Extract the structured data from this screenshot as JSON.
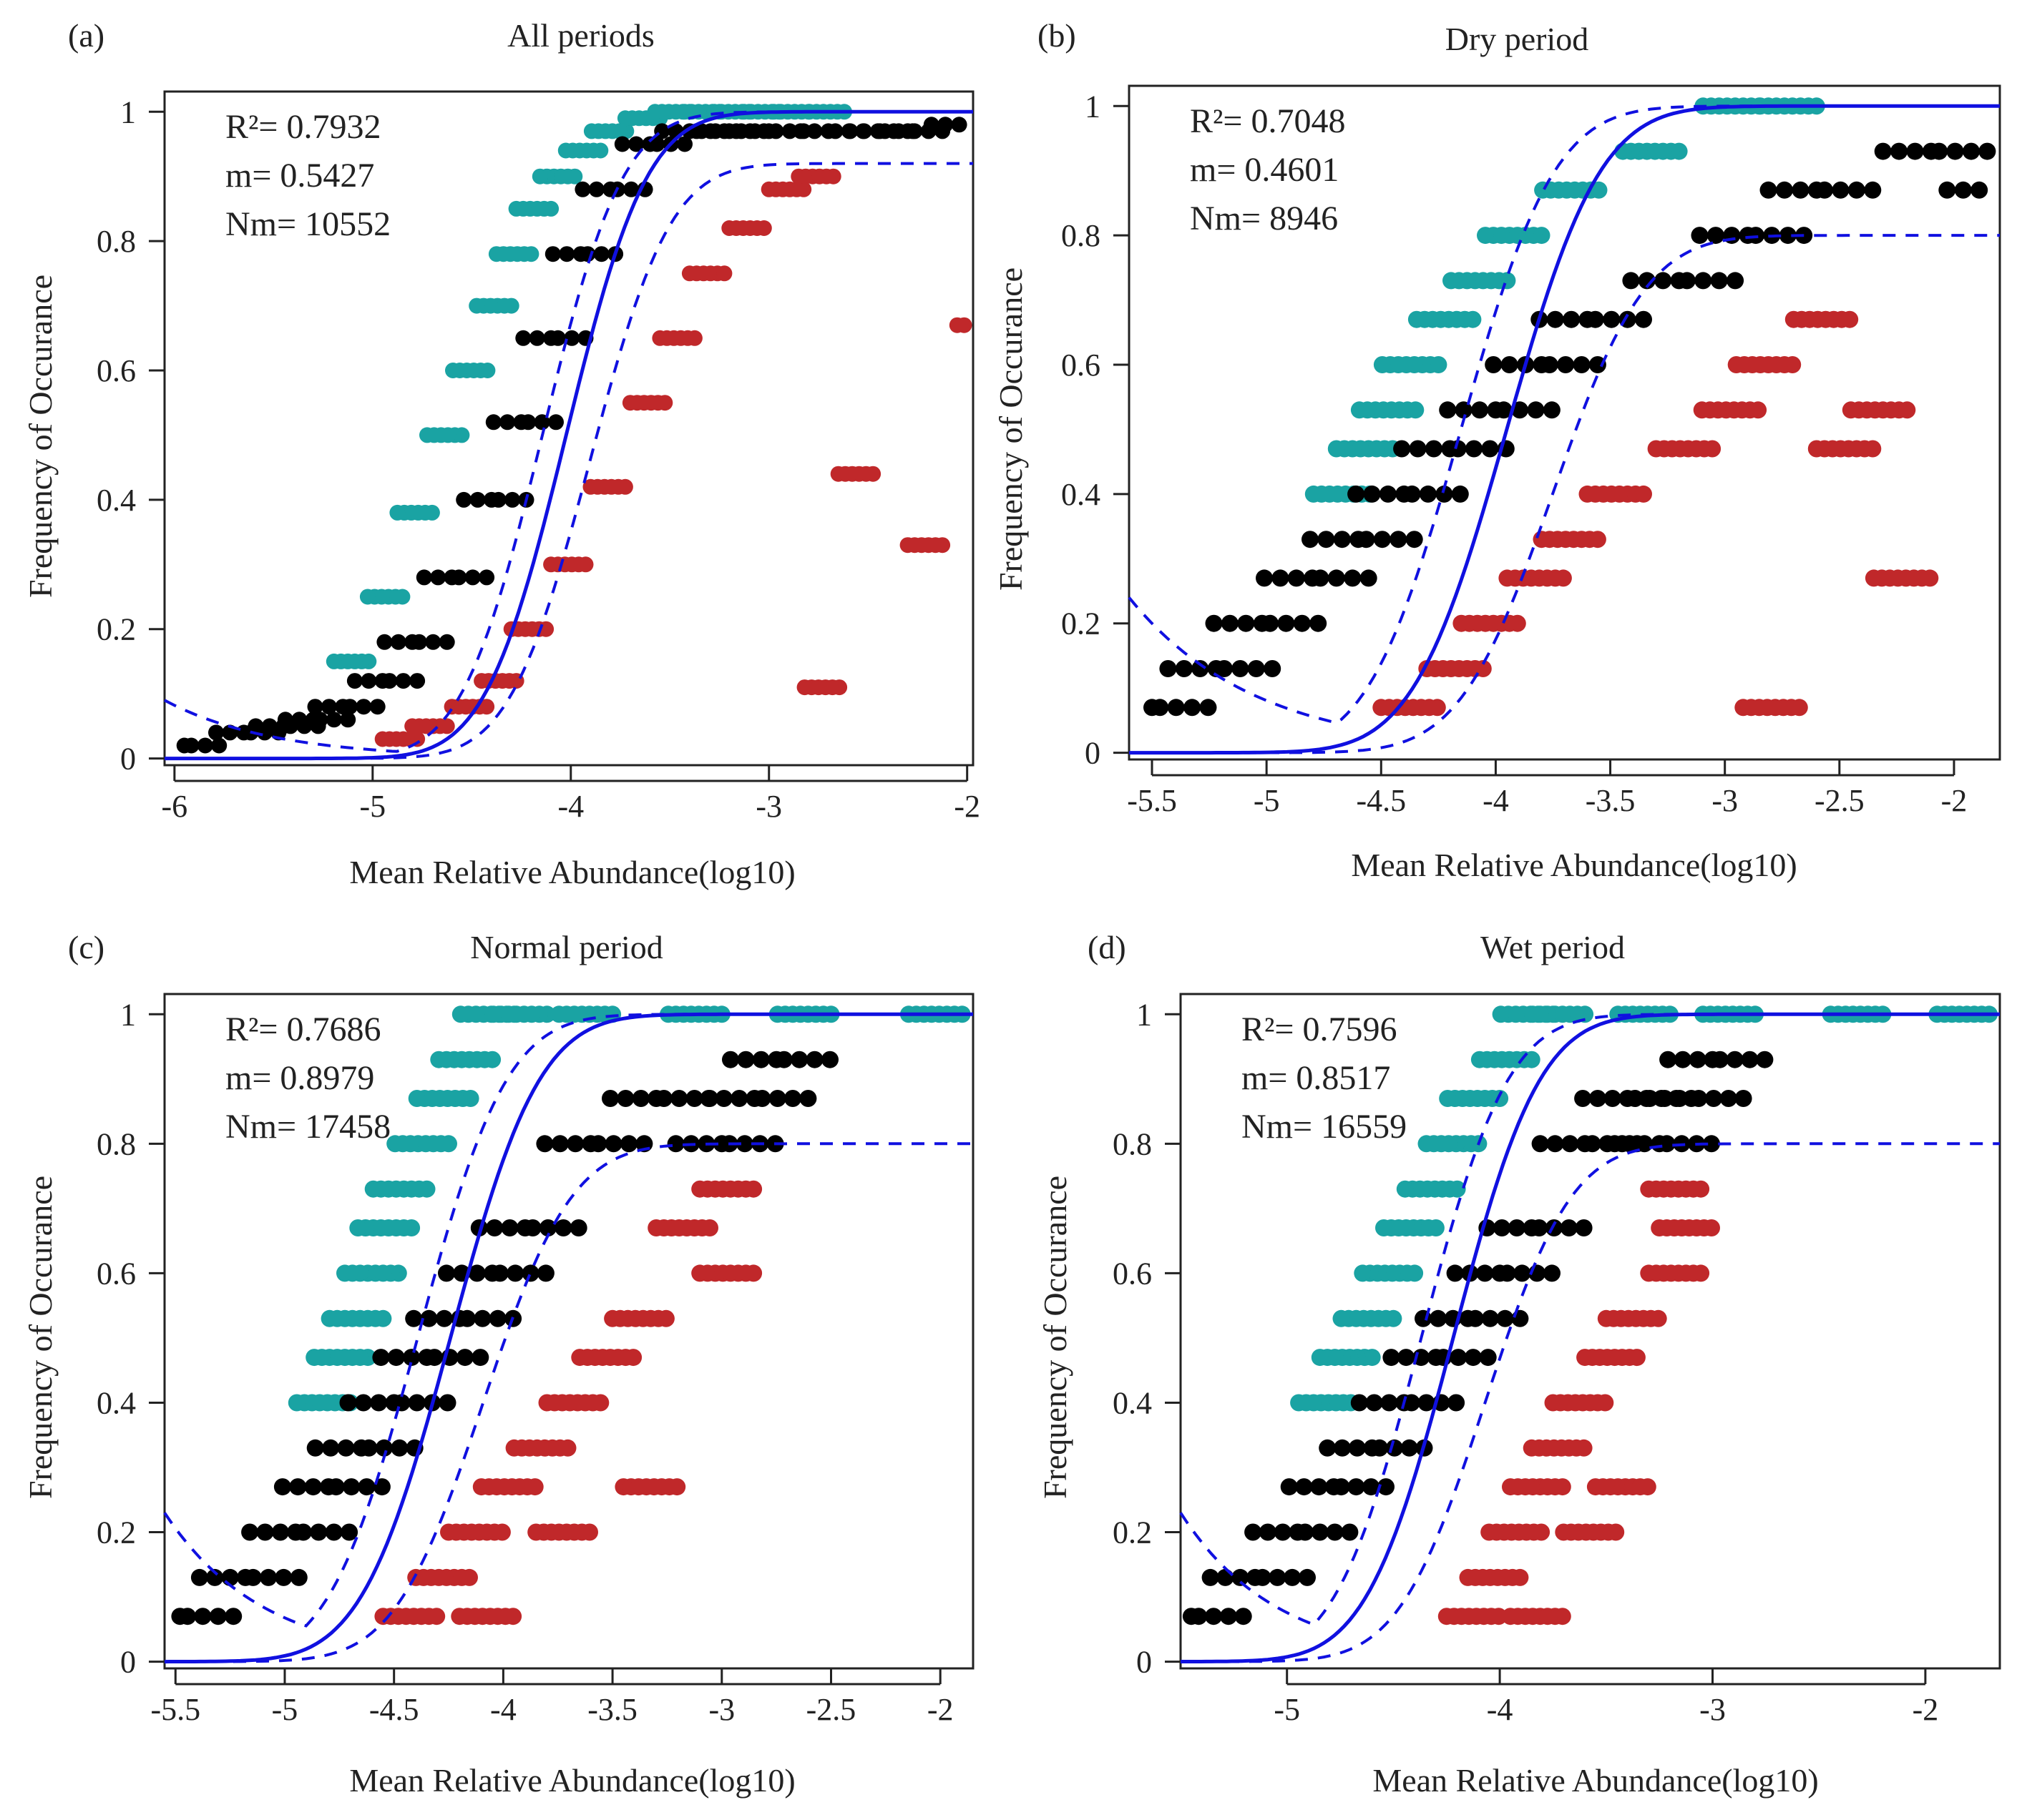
{
  "colors": {
    "above": "#1aa3a3",
    "neutral": "#000000",
    "below": "#c0282a",
    "fit": "#1010e0"
  },
  "chart_data": [
    {
      "type": "scatter",
      "panel": "(a)",
      "title": "All periods",
      "xlabel": "Mean Relative Abundance(log10)",
      "ylabel": "Frequency of Occurance",
      "xlim": [
        -6.05,
        -1.97
      ],
      "ylim": [
        0,
        1
      ],
      "xticks": [
        "-6",
        "-5",
        "-4",
        "-3",
        "-2"
      ],
      "xtick_values": [
        -6,
        -5,
        -4,
        -3,
        -2
      ],
      "yticks": [
        "0",
        "0.2",
        "0.4",
        "0.6",
        "0.8",
        "1"
      ],
      "ytick_values": [
        0,
        0.2,
        0.4,
        0.6,
        0.8,
        1
      ],
      "stats": [
        "R²= 0.7932",
        "m= 0.5427",
        "Nm= 10552"
      ],
      "fit": {
        "m": 0.5427,
        "Nm": 10552,
        "upper_plateau": 1.0,
        "upper_ci_plateau": 1.0,
        "lower_ci_plateau": 0.92,
        "upper_ci_left": 0.09,
        "upper_ci_decay": 0.55,
        "ci_shift": 0.12
      },
      "n_levels": 60,
      "series": [
        {
          "name": "",
          "class": "above",
          "x": [
            -5.02,
            -4.85,
            -4.7,
            -4.55,
            -4.42,
            -4.3,
            -4.2,
            -4.1,
            -3.98,
            -3.85,
            -3.72,
            -3.55,
            -3.4,
            -3.25,
            -3.1,
            -2.95,
            -2.8,
            -2.62
          ],
          "y": [
            0.15,
            0.25,
            0.38,
            0.5,
            0.6,
            0.7,
            0.78,
            0.85,
            0.9,
            0.94,
            0.97,
            0.99,
            1.0,
            1.0,
            1.0,
            1.0,
            1.0,
            1.0
          ]
        },
        {
          "name": "",
          "class": "neutral",
          "x": [
            -5.95,
            -5.65,
            -5.45,
            -5.3,
            -5.15,
            -4.95,
            -4.8,
            -4.6,
            -4.4,
            -4.25,
            -4.1,
            -3.95,
            -3.8,
            -3.6,
            -3.4,
            -3.2,
            -3.0,
            -2.7,
            -2.45,
            -2.3,
            -2.04
          ],
          "y": [
            0.02,
            0.04,
            0.05,
            0.06,
            0.08,
            0.12,
            0.18,
            0.28,
            0.4,
            0.52,
            0.65,
            0.78,
            0.88,
            0.95,
            0.97,
            0.97,
            0.97,
            0.97,
            0.97,
            0.97,
            0.98
          ]
        },
        {
          "name": "",
          "class": "below",
          "x": [
            -4.95,
            -4.8,
            -4.6,
            -4.45,
            -4.3,
            -4.1,
            -3.9,
            -3.7,
            -3.55,
            -3.4,
            -3.2,
            -3.0,
            -2.85,
            -2.65,
            -2.3,
            -2.05,
            -2.82
          ],
          "y": [
            0.03,
            0.05,
            0.08,
            0.12,
            0.2,
            0.3,
            0.42,
            0.55,
            0.65,
            0.75,
            0.82,
            0.88,
            0.9,
            0.44,
            0.33,
            0.67,
            0.11
          ]
        }
      ]
    },
    {
      "type": "scatter",
      "panel": "(b)",
      "title": "Dry period",
      "xlabel": "Mean Relative Abundance(log10)",
      "ylabel": "Frequency of Occurance",
      "xlim": [
        -5.6,
        -1.8
      ],
      "ylim": [
        0,
        1
      ],
      "xticks": [
        "-5.5",
        "-5",
        "-4.5",
        "-4",
        "-3.5",
        "-3",
        "-2.5",
        "-2"
      ],
      "xtick_values": [
        -5.5,
        -5,
        -4.5,
        -4,
        -3.5,
        -3,
        -2.5,
        -2
      ],
      "yticks": [
        "0",
        "0.2",
        "0.4",
        "0.6",
        "0.8",
        "1"
      ],
      "ytick_values": [
        0,
        0.2,
        0.4,
        0.6,
        0.8,
        1
      ],
      "stats": [
        "R²= 0.7048",
        "m= 0.4601",
        "Nm= 8946"
      ],
      "fit": {
        "m": 0.4601,
        "Nm": 8946,
        "upper_plateau": 1.0,
        "upper_ci_plateau": 1.0,
        "lower_ci_plateau": 0.8,
        "upper_ci_left": 0.24,
        "upper_ci_decay": 0.55,
        "ci_shift": 0.2
      },
      "n_levels": 15,
      "series": [
        {
          "name": "",
          "class": "above",
          "x": [
            -4.55,
            -4.45,
            -4.35,
            -4.25,
            -4.1,
            -3.95,
            -3.8,
            -3.55,
            -3.2,
            -2.85,
            -2.6
          ],
          "y": [
            0.4,
            0.47,
            0.53,
            0.6,
            0.67,
            0.73,
            0.8,
            0.87,
            0.93,
            1.0,
            1.0
          ]
        },
        {
          "name": "",
          "class": "neutral",
          "x": [
            -5.5,
            -5.22,
            -5.02,
            -4.8,
            -4.6,
            -4.4,
            -4.2,
            -4.0,
            -3.8,
            -3.6,
            -3.2,
            -2.9,
            -2.6,
            -2.1,
            -1.82
          ],
          "y": [
            0.07,
            0.13,
            0.2,
            0.27,
            0.33,
            0.4,
            0.47,
            0.53,
            0.6,
            0.67,
            0.73,
            0.8,
            0.87,
            0.93,
            0.87
          ]
        },
        {
          "name": "",
          "class": "below",
          "x": [
            -4.5,
            -4.3,
            -4.15,
            -3.95,
            -3.8,
            -3.6,
            -3.3,
            -3.1,
            -2.95,
            -2.7,
            -2.45,
            -2.35,
            -2.6,
            -2.92
          ],
          "y": [
            0.07,
            0.13,
            0.2,
            0.27,
            0.33,
            0.4,
            0.47,
            0.53,
            0.6,
            0.67,
            0.53,
            0.27,
            0.47,
            0.07
          ]
        }
      ]
    },
    {
      "type": "scatter",
      "panel": "(c)",
      "title": "Normal period",
      "xlabel": "Mean Relative Abundance(log10)",
      "ylabel": "Frequency of Occurance",
      "xlim": [
        -5.55,
        -1.85
      ],
      "ylim": [
        0,
        1
      ],
      "xticks": [
        "-5.5",
        "-5",
        "-4.5",
        "-4",
        "-3.5",
        "-3",
        "-2.5",
        "-2"
      ],
      "xtick_values": [
        -5.5,
        -5,
        -4.5,
        -4,
        -3.5,
        -3,
        -2.5,
        -2
      ],
      "yticks": [
        "0",
        "0.2",
        "0.4",
        "0.6",
        "0.8",
        "1"
      ],
      "ytick_values": [
        0,
        0.2,
        0.4,
        0.6,
        0.8,
        1
      ],
      "stats": [
        "R²= 0.7686",
        "m= 0.8979",
        "Nm= 17458"
      ],
      "fit": {
        "m": 0.8979,
        "Nm": 17458,
        "upper_plateau": 1.0,
        "upper_ci_plateau": 1.0,
        "lower_ci_plateau": 0.8,
        "upper_ci_left": 0.23,
        "upper_ci_decay": 0.45,
        "ci_shift": 0.15
      },
      "n_levels": 15,
      "series": [
        {
          "name": "",
          "class": "above",
          "x": [
            -4.7,
            -4.62,
            -4.55,
            -4.48,
            -4.42,
            -4.35,
            -4.25,
            -4.15,
            -4.05,
            -3.95,
            -3.8,
            -3.5,
            -3.0,
            -2.5,
            -1.9
          ],
          "y": [
            0.4,
            0.47,
            0.53,
            0.6,
            0.67,
            0.73,
            0.8,
            0.87,
            0.93,
            1.0,
            1.0,
            1.0,
            1.0,
            1.0,
            1.0
          ]
        },
        {
          "name": "",
          "class": "neutral",
          "x": [
            -5.48,
            -5.18,
            -4.95,
            -4.8,
            -4.65,
            -4.5,
            -4.35,
            -4.2,
            -4.05,
            -3.9,
            -3.6,
            -3.3,
            -3.0,
            -2.85,
            -2.75
          ],
          "y": [
            0.07,
            0.13,
            0.2,
            0.27,
            0.33,
            0.4,
            0.47,
            0.53,
            0.6,
            0.67,
            0.8,
            0.87,
            0.8,
            0.87,
            0.93
          ]
        },
        {
          "name": "",
          "class": "below",
          "x": [
            -4.55,
            -4.4,
            -4.25,
            -4.1,
            -3.95,
            -3.8,
            -3.65,
            -3.5,
            -3.3,
            -3.1,
            -3.1,
            -3.45,
            -3.85,
            -4.2
          ],
          "y": [
            0.07,
            0.13,
            0.2,
            0.27,
            0.33,
            0.4,
            0.47,
            0.53,
            0.67,
            0.73,
            0.6,
            0.27,
            0.2,
            0.07
          ]
        }
      ]
    },
    {
      "type": "scatter",
      "panel": "(d)",
      "title": "Wet period",
      "xlabel": "Mean Relative Abundance(log10)",
      "ylabel": "Frequency of Occurance",
      "xlim": [
        -5.5,
        -1.65
      ],
      "ylim": [
        0,
        1
      ],
      "xticks": [
        "-5",
        "-4",
        "-3",
        "-2"
      ],
      "xtick_values": [
        -5,
        -4,
        -3,
        -2
      ],
      "yticks": [
        "0",
        "0.2",
        "0.4",
        "0.6",
        "0.8",
        "1"
      ],
      "ytick_values": [
        0,
        0.2,
        0.4,
        0.6,
        0.8,
        1
      ],
      "stats": [
        "R²= 0.7596",
        "m= 0.8517",
        "Nm= 16559"
      ],
      "fit": {
        "m": 0.8517,
        "Nm": 16559,
        "upper_plateau": 1.0,
        "upper_ci_plateau": 1.0,
        "lower_ci_plateau": 0.8,
        "upper_ci_left": 0.23,
        "upper_ci_decay": 0.45,
        "ci_shift": 0.15
      },
      "n_levels": 15,
      "series": [
        {
          "name": "",
          "class": "above",
          "x": [
            -4.7,
            -4.6,
            -4.5,
            -4.4,
            -4.3,
            -4.2,
            -4.1,
            -4.0,
            -3.85,
            -3.75,
            -3.6,
            -3.2,
            -2.8,
            -2.2,
            -1.7
          ],
          "y": [
            0.4,
            0.47,
            0.53,
            0.6,
            0.67,
            0.73,
            0.8,
            0.87,
            0.93,
            1.0,
            1.0,
            1.0,
            1.0,
            1.0,
            1.0
          ]
        },
        {
          "name": "",
          "class": "neutral",
          "x": [
            -5.45,
            -5.15,
            -4.95,
            -4.78,
            -4.6,
            -4.45,
            -4.3,
            -4.15,
            -4.0,
            -3.85,
            -3.6,
            -3.4,
            -3.25,
            -3.1,
            -3.0
          ],
          "y": [
            0.07,
            0.13,
            0.2,
            0.27,
            0.33,
            0.4,
            0.47,
            0.53,
            0.6,
            0.67,
            0.8,
            0.87,
            0.8,
            0.87,
            0.93
          ]
        },
        {
          "name": "",
          "class": "below",
          "x": [
            -4.25,
            -4.15,
            -4.05,
            -3.95,
            -3.85,
            -3.75,
            -3.6,
            -3.5,
            -3.3,
            -3.25,
            -3.3,
            -3.55,
            -3.7,
            -3.95
          ],
          "y": [
            0.07,
            0.13,
            0.2,
            0.27,
            0.33,
            0.4,
            0.47,
            0.53,
            0.6,
            0.67,
            0.73,
            0.27,
            0.2,
            0.07
          ]
        }
      ]
    }
  ]
}
